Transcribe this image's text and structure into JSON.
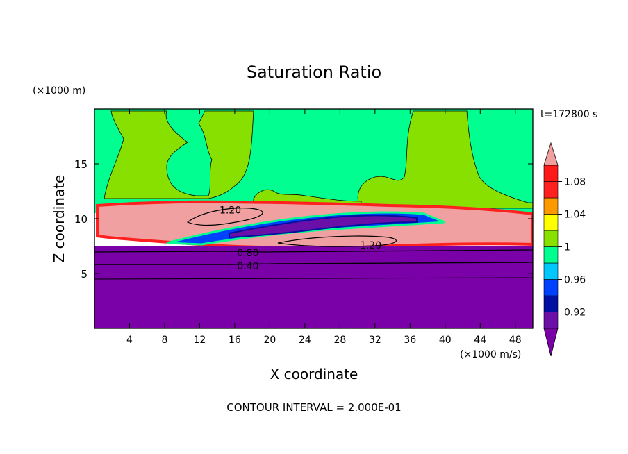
{
  "chart_data": {
    "type": "heatmap",
    "title": "Saturation Ratio",
    "xlabel": "X coordinate",
    "ylabel": "Z coordinate",
    "x_unit": "(×1000 m/s)",
    "y_unit": "(×1000 m)",
    "time_label": "t=172800 s",
    "footer": "CONTOUR INTERVAL = 2.000E-01",
    "xlim": [
      0,
      50
    ],
    "ylim": [
      0,
      20
    ],
    "x_ticks": [
      4,
      8,
      12,
      16,
      20,
      24,
      28,
      32,
      36,
      40,
      44,
      48
    ],
    "y_ticks": [
      5,
      10,
      15
    ],
    "colorbar": {
      "levels": [
        0.9,
        0.92,
        0.94,
        0.96,
        0.98,
        1.0,
        1.02,
        1.04,
        1.06,
        1.08,
        1.1
      ],
      "tick_labels": [
        "0.92",
        "0.96",
        "1",
        "1.04",
        "1.08"
      ],
      "tick_values": [
        0.92,
        0.96,
        1.0,
        1.04,
        1.08
      ],
      "colors": {
        "below": "#7a00a8",
        "bands": [
          "#6a10a8",
          "#0010a0",
          "#0040ff",
          "#00c8ff",
          "#00ff90",
          "#88e000",
          "#ffff00",
          "#ff9900",
          "#ff2020",
          "#ff1a1a"
        ],
        "above": "#f0a0a0"
      }
    },
    "contour_labels": [
      {
        "text": "1.20",
        "x": 15.5,
        "z": 10.8
      },
      {
        "text": "1.20",
        "x": 31.5,
        "z": 7.6
      },
      {
        "text": "0.80",
        "x": 17.5,
        "z": 6.9
      },
      {
        "text": "0.40",
        "x": 17.5,
        "z": 5.7
      }
    ],
    "contour_lines": [
      {
        "value": 0.4,
        "z": 5.8
      },
      {
        "value": 0.8,
        "z": 6.8
      },
      {
        "value": 0.2,
        "z": 4.4
      }
    ]
  }
}
